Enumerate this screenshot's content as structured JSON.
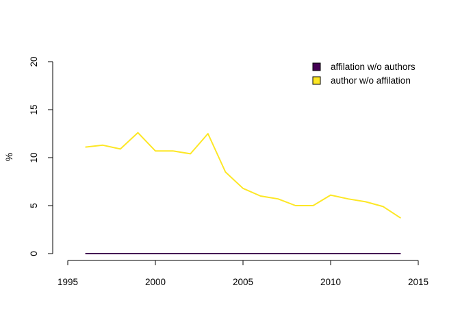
{
  "chart_data": {
    "type": "line",
    "title": "",
    "xlabel": "",
    "ylabel": "%",
    "xlim": [
      1995,
      2015
    ],
    "ylim": [
      0,
      20
    ],
    "xticks": [
      1995,
      2000,
      2005,
      2010,
      2015
    ],
    "yticks": [
      0,
      5,
      10,
      15,
      20
    ],
    "grid": false,
    "legend_position": "top-right",
    "x": [
      1996,
      1997,
      1998,
      1999,
      2000,
      2001,
      2002,
      2003,
      2004,
      2005,
      2006,
      2007,
      2008,
      2009,
      2010,
      2011,
      2012,
      2013,
      2014
    ],
    "series": [
      {
        "name": "affilation w/o authors",
        "color": "#440154",
        "values": [
          0,
          0,
          0,
          0,
          0,
          0,
          0,
          0,
          0,
          0,
          0,
          0,
          0,
          0,
          0,
          0,
          0,
          0,
          0
        ]
      },
      {
        "name": "author w/o affilation",
        "color": "#FDE725",
        "values": [
          11.1,
          11.3,
          10.9,
          12.6,
          10.7,
          10.7,
          10.4,
          12.5,
          8.5,
          6.8,
          6.0,
          5.7,
          5.0,
          5.0,
          6.1,
          5.7,
          5.4,
          4.9,
          3.7
        ]
      }
    ]
  }
}
